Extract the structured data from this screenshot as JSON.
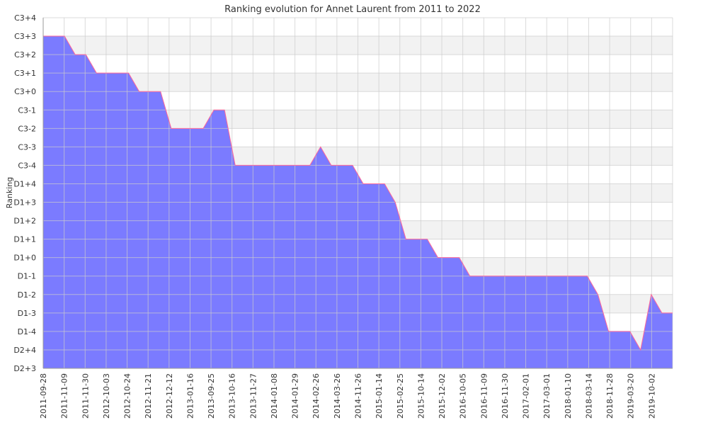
{
  "chart_data": {
    "type": "area",
    "title": "Ranking evolution for Annet Laurent from 2011 to 2022",
    "xlabel": "",
    "ylabel": "Ranking",
    "y_levels": [
      "D2+3",
      "D2+4",
      "D1-4",
      "D1-3",
      "D1-2",
      "D1-1",
      "D1+0",
      "D1+1",
      "D1+2",
      "D1+3",
      "D1+4",
      "C3-4",
      "C3-3",
      "C3-2",
      "C3-1",
      "C3+0",
      "C3+1",
      "C3+2",
      "C3+3",
      "C3+4"
    ],
    "x_tick_labels": [
      "2011-09-28",
      "2011-11-09",
      "2011-11-30",
      "2012-10-03",
      "2012-10-24",
      "2012-11-21",
      "2012-12-12",
      "2013-01-16",
      "2013-09-25",
      "2013-10-16",
      "2013-11-27",
      "2014-01-08",
      "2014-01-29",
      "2014-02-26",
      "2014-03-26",
      "2014-11-26",
      "2015-01-14",
      "2015-02-25",
      "2015-10-14",
      "2015-12-02",
      "2016-10-05",
      "2016-11-09",
      "2016-11-30",
      "2017-02-01",
      "2017-03-01",
      "2018-01-10",
      "2018-03-14",
      "2018-11-28",
      "2019-03-20",
      "2019-10-02"
    ],
    "series": [
      {
        "values": [
          "C3+3",
          "C3+3",
          "C3+3",
          "C3+2",
          "C3+2",
          "C3+1",
          "C3+1",
          "C3+1",
          "C3+1",
          "C3+0",
          "C3+0",
          "C3+0",
          "C3-2",
          "C3-2",
          "C3-2",
          "C3-2",
          "C3-1",
          "C3-1",
          "C3-4",
          "C3-4",
          "C3-4",
          "C3-4",
          "C3-4",
          "C3-4",
          "C3-4",
          "C3-4",
          "C3-3",
          "C3-4",
          "C3-4",
          "C3-4",
          "D1+4",
          "D1+4",
          "D1+4",
          "D1+3",
          "D1+1",
          "D1+1",
          "D1+1",
          "D1+0",
          "D1+0",
          "D1+0",
          "D1-1",
          "D1-1",
          "D1-1",
          "D1-1",
          "D1-1",
          "D1-1",
          "D1-1",
          "D1-1",
          "D1-1",
          "D1-1",
          "D1-1",
          "D1-1",
          "D1-2",
          "D1-4",
          "D1-4",
          "D1-4",
          "D2+4",
          "D1-2",
          "D1-3",
          "D1-3"
        ]
      }
    ],
    "colors": {
      "fill": "#7b7bff",
      "line": "#ff6699",
      "grid": "#cccccc",
      "band": "#f2f2f2"
    },
    "grid": true,
    "legend": "none"
  }
}
